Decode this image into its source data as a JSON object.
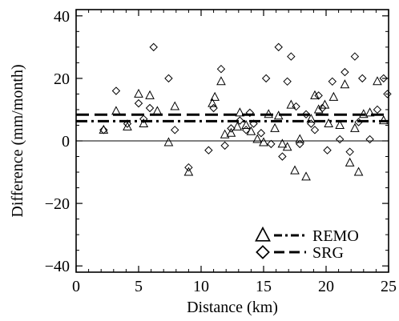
{
  "chart_data": {
    "type": "scatter",
    "xlabel": "Distance (km)",
    "ylabel": "Difference (mm/month)",
    "xlim": [
      0,
      25
    ],
    "ylim": [
      -42,
      42
    ],
    "xticks": [
      0,
      5,
      10,
      15,
      20,
      25
    ],
    "yticks": [
      -40,
      -20,
      0,
      20,
      40
    ],
    "grid": false,
    "legend_position": "bottom-right",
    "zero_line": 0,
    "series": [
      {
        "name": "REMO",
        "marker": "triangle",
        "mean_line": 6.3,
        "mean_line_style": "dash-dot",
        "points": [
          [
            2.2,
            3.5
          ],
          [
            3.2,
            9.5
          ],
          [
            4.1,
            4.5
          ],
          [
            5.0,
            15.0
          ],
          [
            5.4,
            5.5
          ],
          [
            5.9,
            14.5
          ],
          [
            6.5,
            9.5
          ],
          [
            7.4,
            -0.5
          ],
          [
            7.9,
            11.0
          ],
          [
            9.0,
            -10.0
          ],
          [
            10.9,
            12.0
          ],
          [
            11.1,
            14.0
          ],
          [
            11.6,
            19.0
          ],
          [
            11.9,
            2.0
          ],
          [
            12.4,
            2.5
          ],
          [
            12.9,
            4.5
          ],
          [
            13.1,
            9.0
          ],
          [
            13.6,
            5.0
          ],
          [
            14.0,
            3.0
          ],
          [
            14.5,
            0.5
          ],
          [
            15.0,
            -0.5
          ],
          [
            15.4,
            8.5
          ],
          [
            15.9,
            4.0
          ],
          [
            16.2,
            8.0
          ],
          [
            16.5,
            -1.0
          ],
          [
            16.9,
            -2.0
          ],
          [
            17.2,
            11.5
          ],
          [
            17.5,
            -9.5
          ],
          [
            17.9,
            0.5
          ],
          [
            18.4,
            -11.5
          ],
          [
            18.8,
            7.0
          ],
          [
            19.1,
            14.5
          ],
          [
            19.4,
            10.0
          ],
          [
            19.9,
            11.5
          ],
          [
            20.2,
            5.5
          ],
          [
            20.6,
            14.0
          ],
          [
            21.1,
            5.0
          ],
          [
            21.5,
            18.0
          ],
          [
            21.9,
            -7.0
          ],
          [
            22.3,
            4.0
          ],
          [
            22.6,
            -10.0
          ],
          [
            23.0,
            8.5
          ],
          [
            23.5,
            9.0
          ],
          [
            24.1,
            19.0
          ],
          [
            24.6,
            6.5
          ]
        ]
      },
      {
        "name": "SRG",
        "marker": "diamond",
        "mean_line": 8.4,
        "mean_line_style": "dashed",
        "points": [
          [
            2.2,
            3.5
          ],
          [
            3.2,
            16.0
          ],
          [
            4.1,
            5.5
          ],
          [
            5.0,
            12.0
          ],
          [
            5.4,
            7.0
          ],
          [
            5.9,
            10.5
          ],
          [
            6.2,
            30.0
          ],
          [
            7.4,
            20.0
          ],
          [
            7.9,
            3.5
          ],
          [
            9.0,
            -8.5
          ],
          [
            10.6,
            -3.0
          ],
          [
            11.0,
            10.5
          ],
          [
            11.6,
            23.0
          ],
          [
            11.9,
            -1.5
          ],
          [
            12.4,
            4.0
          ],
          [
            13.1,
            6.5
          ],
          [
            13.6,
            3.5
          ],
          [
            13.9,
            9.0
          ],
          [
            14.2,
            5.5
          ],
          [
            14.8,
            2.5
          ],
          [
            15.2,
            20.0
          ],
          [
            15.6,
            -1.0
          ],
          [
            16.2,
            30.0
          ],
          [
            16.5,
            -5.0
          ],
          [
            16.9,
            19.0
          ],
          [
            17.2,
            27.0
          ],
          [
            17.6,
            11.0
          ],
          [
            17.9,
            -1.0
          ],
          [
            18.4,
            8.5
          ],
          [
            18.8,
            5.5
          ],
          [
            19.1,
            3.5
          ],
          [
            19.4,
            14.5
          ],
          [
            19.7,
            10.5
          ],
          [
            20.1,
            -3.0
          ],
          [
            20.5,
            19.0
          ],
          [
            21.1,
            0.5
          ],
          [
            21.5,
            22.0
          ],
          [
            21.9,
            -3.5
          ],
          [
            22.3,
            27.0
          ],
          [
            22.6,
            6.0
          ],
          [
            22.9,
            20.0
          ],
          [
            23.5,
            0.5
          ],
          [
            24.1,
            10.0
          ],
          [
            24.6,
            20.0
          ],
          [
            24.9,
            15.0
          ]
        ]
      }
    ]
  }
}
